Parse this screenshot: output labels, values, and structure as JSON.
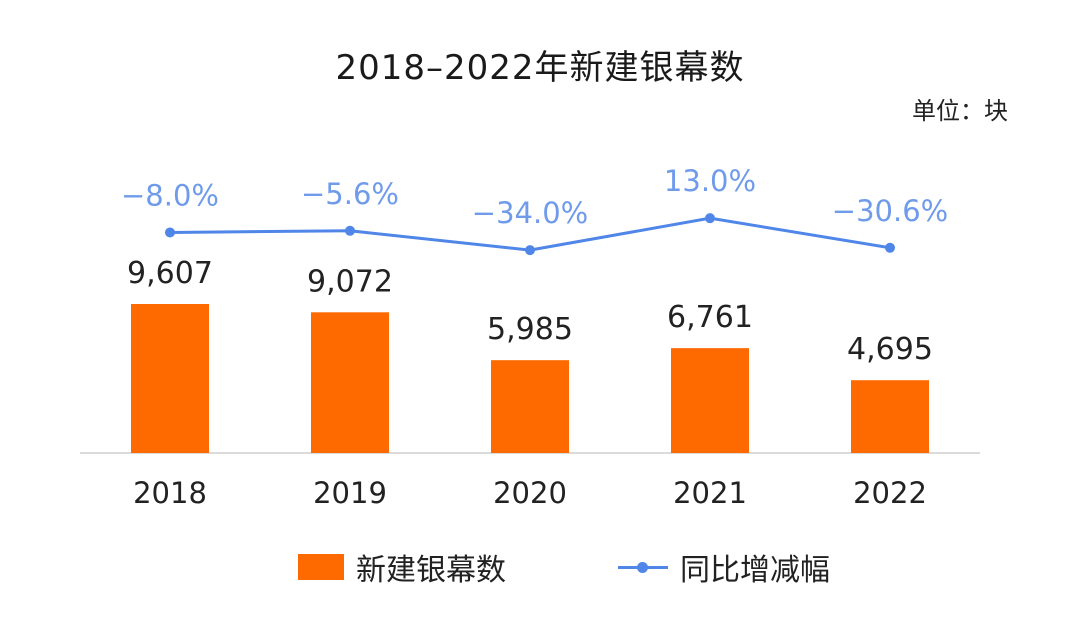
{
  "title": "2018–2022年新建银幕数",
  "unit": "单位：块",
  "colors": {
    "bar": "#FF6A00",
    "line": "#4F86E8",
    "line_label": "#6F9BEA"
  },
  "legend": {
    "bar_label": "新建银幕数",
    "line_label": "同比增减幅"
  },
  "chart_data": {
    "type": "bar",
    "title": "2018–2022年新建银幕数",
    "categories": [
      "2018",
      "2019",
      "2020",
      "2021",
      "2022"
    ],
    "series": [
      {
        "name": "新建银幕数",
        "type": "bar",
        "values": [
          9607,
          9072,
          5985,
          6761,
          4695
        ],
        "labels": [
          "9,607",
          "9,072",
          "5,985",
          "6,761",
          "4,695"
        ]
      },
      {
        "name": "同比增减幅",
        "type": "line",
        "values": [
          -8.0,
          -5.6,
          -34.0,
          13.0,
          -30.6
        ],
        "labels": [
          "−8.0%",
          "−5.6%",
          "−34.0%",
          "13.0%",
          "−30.6%"
        ]
      }
    ],
    "ylim": [
      0,
      10000
    ],
    "grid": false,
    "legend_position": "bottom"
  }
}
